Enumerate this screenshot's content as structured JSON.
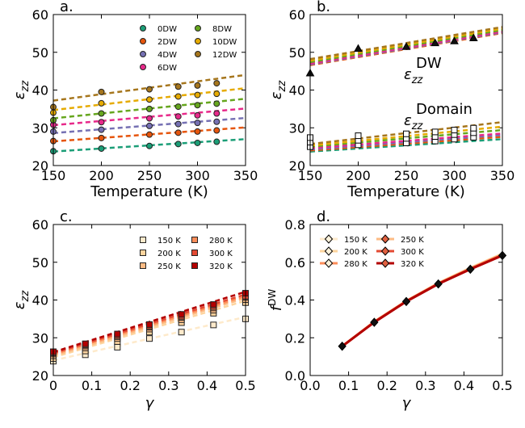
{
  "chart_data": [
    {
      "type": "scatter",
      "panel_label": "a.",
      "xlabel": "Temperature (K)",
      "ylabel_main": "ε",
      "ylabel_sub": "zz",
      "xlim": [
        150,
        350
      ],
      "ylim": [
        20,
        60
      ],
      "xticks": [
        150,
        200,
        250,
        300,
        350
      ],
      "yticks": [
        20,
        30,
        40,
        50,
        60
      ],
      "x": [
        150,
        200,
        250,
        280,
        300,
        320
      ],
      "legend_position": "top-right",
      "series": [
        {
          "name": "0DW",
          "color": "#1b9e77",
          "values": [
            23.8,
            24.5,
            25.2,
            25.7,
            26.0,
            26.3
          ],
          "fit": [
            23.7,
            27.0
          ]
        },
        {
          "name": "2DW",
          "color": "#e6550d",
          "values": [
            26.5,
            27.3,
            28.2,
            28.7,
            29.0,
            29.3
          ],
          "fit": [
            26.4,
            30.1
          ]
        },
        {
          "name": "4DW",
          "color": "#7570b3",
          "values": [
            29.0,
            29.5,
            30.5,
            31.0,
            31.3,
            31.6
          ],
          "fit": [
            28.6,
            32.6
          ]
        },
        {
          "name": "6DW",
          "color": "#e7298a",
          "values": [
            30.8,
            31.5,
            32.5,
            33.0,
            33.3,
            33.8
          ],
          "fit": [
            30.7,
            35.1
          ]
        },
        {
          "name": "8DW",
          "color": "#66a61e",
          "values": [
            32.0,
            33.8,
            35.0,
            35.6,
            36.0,
            36.4
          ],
          "fit": [
            32.5,
            37.7
          ]
        },
        {
          "name": "10DW",
          "color": "#e6ab02",
          "values": [
            34.0,
            36.5,
            37.5,
            38.3,
            38.7,
            39.0
          ],
          "fit": [
            34.7,
            40.5
          ]
        },
        {
          "name": "12DW",
          "color": "#a6761d",
          "values": [
            35.5,
            39.5,
            40.2,
            40.9,
            41.2,
            41.8
          ],
          "fit": [
            37.2,
            44.0
          ]
        }
      ]
    },
    {
      "type": "scatter",
      "panel_label": "b.",
      "xlabel": "Temperature (K)",
      "ylabel_main": "ε",
      "ylabel_sub": "zz",
      "xlim": [
        150,
        350
      ],
      "ylim": [
        20,
        60
      ],
      "xticks": [
        150,
        200,
        250,
        300,
        350
      ],
      "yticks": [
        20,
        30,
        40,
        50,
        60
      ],
      "annotations": [
        {
          "main": "ε",
          "sub": "zz",
          "sup": "DW"
        },
        {
          "main": "ε",
          "sub": "zz",
          "sup": "Domain"
        }
      ],
      "dw_points": {
        "x": [
          150,
          200,
          250,
          280,
          300,
          320
        ],
        "values": [
          44.5,
          51.0,
          51.5,
          52.5,
          53.0,
          53.8
        ]
      },
      "dw_fits": [
        {
          "color": "#e6550d",
          "values": [
            46.6,
            55.1
          ]
        },
        {
          "color": "#7570b3",
          "values": [
            46.8,
            55.3
          ]
        },
        {
          "color": "#e7298a",
          "values": [
            47.0,
            55.5
          ]
        },
        {
          "color": "#66a61e",
          "values": [
            47.4,
            55.9
          ]
        },
        {
          "color": "#e6ab02",
          "values": [
            47.8,
            56.3
          ]
        },
        {
          "color": "#a6761d",
          "values": [
            48.2,
            56.7
          ]
        }
      ],
      "domain_points": {
        "x": [
          150,
          200,
          250,
          280,
          300,
          320
        ],
        "values": [
          25.0,
          25.5,
          26.0,
          26.5,
          27.0,
          27.5
        ]
      },
      "domain_fits": [
        {
          "color": "#1b9e77",
          "values": [
            23.7,
            27.0
          ]
        },
        {
          "color": "#e6550d",
          "values": [
            24.0,
            27.6
          ]
        },
        {
          "color": "#7570b3",
          "values": [
            24.3,
            28.1
          ]
        },
        {
          "color": "#e7298a",
          "values": [
            24.6,
            28.5
          ]
        },
        {
          "color": "#66a61e",
          "values": [
            25.0,
            29.4
          ]
        },
        {
          "color": "#e6ab02",
          "values": [
            25.3,
            30.3
          ]
        },
        {
          "color": "#a6761d",
          "values": [
            25.7,
            31.5
          ]
        }
      ]
    },
    {
      "type": "scatter",
      "panel_label": "c.",
      "xlabel": "γ",
      "ylabel_main": "ε",
      "ylabel_sub": "zz",
      "xlim": [
        0.0,
        0.5
      ],
      "ylim": [
        20,
        60
      ],
      "xticks": [
        0.0,
        0.1,
        0.2,
        0.3,
        0.4,
        0.5
      ],
      "yticks": [
        20,
        30,
        40,
        50,
        60
      ],
      "x": [
        0.0,
        0.0833,
        0.1667,
        0.25,
        0.3333,
        0.4167,
        0.5
      ],
      "legend_position": "top-right",
      "series": [
        {
          "name": "150 K",
          "color": "#feeacb",
          "values": [
            23.8,
            25.5,
            27.5,
            29.8,
            31.5,
            33.4,
            35.0
          ],
          "fit": [
            24.0,
            35.5
          ]
        },
        {
          "name": "200 K",
          "color": "#fdd49e",
          "values": [
            24.5,
            26.5,
            29.0,
            31.5,
            34.0,
            36.5,
            39.3
          ],
          "fit": [
            24.8,
            39.8
          ]
        },
        {
          "name": "250 K",
          "color": "#fdbb84",
          "values": [
            25.2,
            27.3,
            29.8,
            32.3,
            34.8,
            37.3,
            40.1
          ],
          "fit": [
            25.2,
            40.5
          ]
        },
        {
          "name": "280 K",
          "color": "#fc8d59",
          "values": [
            25.7,
            27.8,
            30.3,
            32.8,
            35.4,
            37.9,
            40.7
          ],
          "fit": [
            25.6,
            41.0
          ]
        },
        {
          "name": "300 K",
          "color": "#e34a33",
          "values": [
            26.0,
            28.1,
            30.6,
            33.1,
            35.7,
            38.3,
            41.0
          ],
          "fit": [
            25.9,
            41.5
          ]
        },
        {
          "name": "320 K",
          "color": "#b30000",
          "values": [
            26.3,
            28.4,
            31.0,
            33.5,
            36.2,
            38.8,
            41.8
          ],
          "fit": [
            26.2,
            42.2
          ]
        }
      ]
    },
    {
      "type": "line",
      "panel_label": "d.",
      "xlabel": "γ",
      "ylabel_main": "f",
      "ylabel_sup": "DW",
      "xlim": [
        0.0,
        0.5
      ],
      "ylim": [
        0.0,
        0.8
      ],
      "xticks": [
        "0.0",
        "0.1",
        "0.2",
        "0.3",
        "0.4",
        "0.5"
      ],
      "yticks": [
        "0.0",
        "0.2",
        "0.4",
        "0.6",
        "0.8"
      ],
      "x": [
        0.0833,
        0.1667,
        0.25,
        0.3333,
        0.4167,
        0.5
      ],
      "legend_position": "top-left",
      "series": [
        {
          "name": "150 K",
          "color": "#feeacb",
          "values": [
            0.155,
            0.285,
            0.395,
            0.49,
            0.57,
            0.645
          ]
        },
        {
          "name": "200 K",
          "color": "#fdd49e",
          "values": [
            0.155,
            0.285,
            0.395,
            0.49,
            0.57,
            0.645
          ]
        },
        {
          "name": "250 K",
          "color": "#fdbb84",
          "values": [
            0.155,
            0.285,
            0.395,
            0.488,
            0.568,
            0.643
          ]
        },
        {
          "name": "280 K",
          "color": "#fc8d59",
          "values": [
            0.155,
            0.284,
            0.394,
            0.487,
            0.566,
            0.64
          ]
        },
        {
          "name": "300 K",
          "color": "#e34a33",
          "values": [
            0.155,
            0.283,
            0.393,
            0.486,
            0.564,
            0.638
          ]
        },
        {
          "name": "320 K",
          "color": "#b30000",
          "values": [
            0.155,
            0.282,
            0.392,
            0.485,
            0.563,
            0.636
          ]
        }
      ],
      "legend_order": [
        0,
        3,
        1,
        4,
        2,
        5
      ]
    }
  ]
}
